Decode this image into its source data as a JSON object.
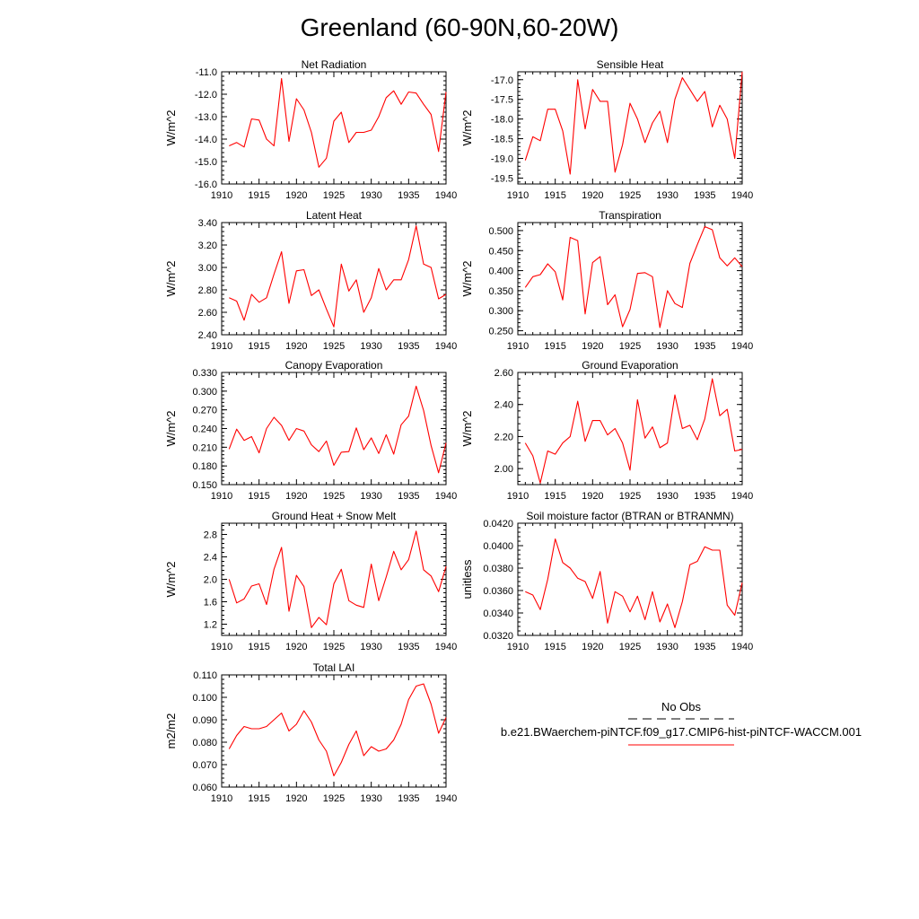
{
  "title": "Greenland (60-90N,60-20W)",
  "legend": {
    "obs_label": "No Obs",
    "model_label": "b.e21.BWaerchem-piNTCF.f09_g17.CMIP6-hist-piNTCF-WACCM.001",
    "model_color": "#ff0000",
    "obs_color": "#000000"
  },
  "chart_data": [
    {
      "type": "line",
      "title": "Net Radiation",
      "ylabel": "W/m^2",
      "xlim": [
        1910,
        1940
      ],
      "ylim": [
        -16.0,
        -11.0
      ],
      "xticks": [
        "1910",
        "1915",
        "1920",
        "1925",
        "1930",
        "1935",
        "1940"
      ],
      "yticks": [
        "-16.0",
        "-15.0",
        "-14.0",
        "-13.0",
        "-12.0",
        "-11.0"
      ],
      "x": [
        1911,
        1912,
        1913,
        1914,
        1915,
        1916,
        1917,
        1918,
        1919,
        1920,
        1921,
        1922,
        1923,
        1924,
        1925,
        1926,
        1927,
        1928,
        1929,
        1930,
        1931,
        1932,
        1933,
        1934,
        1935,
        1936,
        1937,
        1938,
        1939,
        1940
      ],
      "series": [
        {
          "values": [
            -14.3,
            -14.15,
            -14.35,
            -13.1,
            -13.15,
            -14.0,
            -14.3,
            -11.3,
            -14.1,
            -12.2,
            -12.7,
            -13.7,
            -15.25,
            -14.85,
            -13.2,
            -12.8,
            -14.15,
            -13.7,
            -13.7,
            -13.6,
            -13.0,
            -12.15,
            -11.85,
            -12.45,
            -11.9,
            -11.95,
            -12.45,
            -12.9,
            -14.55,
            -11.9
          ]
        }
      ]
    },
    {
      "type": "line",
      "title": "Sensible Heat",
      "ylabel": "W/m^2",
      "xlim": [
        1910,
        1940
      ],
      "ylim": [
        -19.65,
        -16.8
      ],
      "xticks": [
        "1910",
        "1915",
        "1920",
        "1925",
        "1930",
        "1935",
        "1940"
      ],
      "yticks": [
        "-19.5",
        "-19.0",
        "-18.5",
        "-18.0",
        "-17.5",
        "-17.0"
      ],
      "x": [
        1911,
        1912,
        1913,
        1914,
        1915,
        1916,
        1917,
        1918,
        1919,
        1920,
        1921,
        1922,
        1923,
        1924,
        1925,
        1926,
        1927,
        1928,
        1929,
        1930,
        1931,
        1932,
        1933,
        1934,
        1935,
        1936,
        1937,
        1938,
        1939,
        1940
      ],
      "series": [
        {
          "values": [
            -19.05,
            -18.45,
            -18.55,
            -17.75,
            -17.75,
            -18.3,
            -19.4,
            -17.0,
            -18.25,
            -17.25,
            -17.55,
            -17.55,
            -19.35,
            -18.65,
            -17.6,
            -18.0,
            -18.6,
            -18.1,
            -17.8,
            -18.6,
            -17.5,
            -16.95,
            -17.25,
            -17.55,
            -17.3,
            -18.2,
            -17.65,
            -18.0,
            -19.0,
            -16.8
          ]
        }
      ]
    },
    {
      "type": "line",
      "title": "Latent Heat",
      "ylabel": "W/m^2",
      "xlim": [
        1910,
        1940
      ],
      "ylim": [
        2.4,
        3.4
      ],
      "xticks": [
        "1910",
        "1915",
        "1920",
        "1925",
        "1930",
        "1935",
        "1940"
      ],
      "yticks": [
        "2.40",
        "2.60",
        "2.80",
        "3.00",
        "3.20",
        "3.40"
      ],
      "x": [
        1911,
        1912,
        1913,
        1914,
        1915,
        1916,
        1917,
        1918,
        1919,
        1920,
        1921,
        1922,
        1923,
        1924,
        1925,
        1926,
        1927,
        1928,
        1929,
        1930,
        1931,
        1932,
        1933,
        1934,
        1935,
        1936,
        1937,
        1938,
        1939,
        1940
      ],
      "series": [
        {
          "values": [
            2.73,
            2.7,
            2.53,
            2.76,
            2.69,
            2.73,
            2.94,
            3.14,
            2.68,
            2.97,
            2.98,
            2.75,
            2.8,
            2.63,
            2.47,
            3.03,
            2.79,
            2.89,
            2.6,
            2.73,
            2.99,
            2.8,
            2.89,
            2.89,
            3.07,
            3.37,
            3.03,
            3.0,
            2.72,
            2.76
          ]
        }
      ]
    },
    {
      "type": "line",
      "title": "Transpiration",
      "ylabel": "W/m^2",
      "xlim": [
        1910,
        1940
      ],
      "ylim": [
        0.24,
        0.52
      ],
      "xticks": [
        "1910",
        "1915",
        "1920",
        "1925",
        "1930",
        "1935",
        "1940"
      ],
      "yticks": [
        "0.250",
        "0.300",
        "0.350",
        "0.400",
        "0.450",
        "0.500"
      ],
      "x": [
        1911,
        1912,
        1913,
        1914,
        1915,
        1916,
        1917,
        1918,
        1919,
        1920,
        1921,
        1922,
        1923,
        1924,
        1925,
        1926,
        1927,
        1928,
        1929,
        1930,
        1931,
        1932,
        1933,
        1934,
        1935,
        1936,
        1937,
        1938,
        1939,
        1940
      ],
      "series": [
        {
          "values": [
            0.358,
            0.385,
            0.39,
            0.417,
            0.397,
            0.327,
            0.483,
            0.475,
            0.292,
            0.42,
            0.435,
            0.315,
            0.34,
            0.26,
            0.303,
            0.393,
            0.395,
            0.385,
            0.258,
            0.35,
            0.318,
            0.308,
            0.418,
            0.465,
            0.51,
            0.502,
            0.432,
            0.412,
            0.432,
            0.41
          ]
        }
      ]
    },
    {
      "type": "line",
      "title": "Canopy Evaporation",
      "ylabel": "W/m^2",
      "xlim": [
        1910,
        1940
      ],
      "ylim": [
        0.15,
        0.33
      ],
      "xticks": [
        "1910",
        "1915",
        "1920",
        "1925",
        "1930",
        "1935",
        "1940"
      ],
      "yticks": [
        "0.150",
        "0.180",
        "0.210",
        "0.240",
        "0.270",
        "0.300",
        "0.330"
      ],
      "x": [
        1911,
        1912,
        1913,
        1914,
        1915,
        1916,
        1917,
        1918,
        1919,
        1920,
        1921,
        1922,
        1923,
        1924,
        1925,
        1926,
        1927,
        1928,
        1929,
        1930,
        1931,
        1932,
        1933,
        1934,
        1935,
        1936,
        1937,
        1938,
        1939,
        1940
      ],
      "series": [
        {
          "values": [
            0.207,
            0.239,
            0.221,
            0.227,
            0.201,
            0.24,
            0.258,
            0.245,
            0.221,
            0.24,
            0.236,
            0.214,
            0.203,
            0.22,
            0.181,
            0.202,
            0.203,
            0.241,
            0.206,
            0.225,
            0.2,
            0.23,
            0.199,
            0.246,
            0.26,
            0.308,
            0.269,
            0.213,
            0.169,
            0.217
          ]
        }
      ]
    },
    {
      "type": "line",
      "title": "Ground Evaporation",
      "ylabel": "W/m^2",
      "xlim": [
        1910,
        1940
      ],
      "ylim": [
        1.9,
        2.6
      ],
      "xticks": [
        "1910",
        "1915",
        "1920",
        "1925",
        "1930",
        "1935",
        "1940"
      ],
      "yticks": [
        "2.00",
        "2.20",
        "2.40",
        "2.60"
      ],
      "x": [
        1911,
        1912,
        1913,
        1914,
        1915,
        1916,
        1917,
        1918,
        1919,
        1920,
        1921,
        1922,
        1923,
        1924,
        1925,
        1926,
        1927,
        1928,
        1929,
        1930,
        1931,
        1932,
        1933,
        1934,
        1935,
        1936,
        1937,
        1938,
        1939,
        1940
      ],
      "series": [
        {
          "values": [
            2.16,
            2.08,
            1.91,
            2.11,
            2.09,
            2.16,
            2.2,
            2.42,
            2.17,
            2.3,
            2.3,
            2.21,
            2.25,
            2.16,
            1.99,
            2.43,
            2.19,
            2.26,
            2.13,
            2.16,
            2.46,
            2.25,
            2.27,
            2.18,
            2.31,
            2.56,
            2.33,
            2.37,
            2.11,
            2.12
          ]
        }
      ]
    },
    {
      "type": "line",
      "title": "Ground Heat + Snow Melt",
      "ylabel": "W/m^2",
      "xlim": [
        1910,
        1940
      ],
      "ylim": [
        1.0,
        3.0
      ],
      "xticks": [
        "1910",
        "1915",
        "1920",
        "1925",
        "1930",
        "1935",
        "1940"
      ],
      "yticks": [
        "1.2",
        "1.6",
        "2.0",
        "2.4",
        "2.8"
      ],
      "x": [
        1911,
        1912,
        1913,
        1914,
        1915,
        1916,
        1917,
        1918,
        1919,
        1920,
        1921,
        1922,
        1923,
        1924,
        1925,
        1926,
        1927,
        1928,
        1929,
        1930,
        1931,
        1932,
        1933,
        1934,
        1935,
        1936,
        1937,
        1938,
        1939,
        1940
      ],
      "series": [
        {
          "values": [
            2.0,
            1.58,
            1.65,
            1.88,
            1.92,
            1.55,
            2.18,
            2.57,
            1.43,
            2.07,
            1.87,
            1.14,
            1.32,
            1.19,
            1.92,
            2.18,
            1.62,
            1.54,
            1.5,
            2.27,
            1.62,
            2.04,
            2.5,
            2.17,
            2.35,
            2.86,
            2.17,
            2.06,
            1.78,
            2.23
          ]
        }
      ]
    },
    {
      "type": "line",
      "title": "Soil moisture factor (BTRAN or BTRANMN)",
      "ylabel": "unitless",
      "xlim": [
        1910,
        1940
      ],
      "ylim": [
        0.032,
        0.042
      ],
      "xticks": [
        "1910",
        "1915",
        "1920",
        "1925",
        "1930",
        "1935",
        "1940"
      ],
      "yticks": [
        "0.0320",
        "0.0340",
        "0.0360",
        "0.0380",
        "0.0400",
        "0.0420"
      ],
      "x": [
        1911,
        1912,
        1913,
        1914,
        1915,
        1916,
        1917,
        1918,
        1919,
        1920,
        1921,
        1922,
        1923,
        1924,
        1925,
        1926,
        1927,
        1928,
        1929,
        1930,
        1931,
        1932,
        1933,
        1934,
        1935,
        1936,
        1937,
        1938,
        1939,
        1940
      ],
      "series": [
        {
          "values": [
            0.0359,
            0.0356,
            0.0343,
            0.037,
            0.0406,
            0.0385,
            0.038,
            0.0371,
            0.0368,
            0.0353,
            0.0377,
            0.0331,
            0.0359,
            0.0355,
            0.0341,
            0.0355,
            0.0334,
            0.0359,
            0.0332,
            0.0348,
            0.0327,
            0.035,
            0.0383,
            0.0386,
            0.0399,
            0.0396,
            0.0396,
            0.0347,
            0.0338,
            0.0367
          ]
        }
      ]
    },
    {
      "type": "line",
      "title": "Total LAI",
      "ylabel": "m2/m2",
      "xlim": [
        1910,
        1940
      ],
      "ylim": [
        0.06,
        0.11
      ],
      "xticks": [
        "1910",
        "1915",
        "1920",
        "1925",
        "1930",
        "1935",
        "1940"
      ],
      "yticks": [
        "0.060",
        "0.070",
        "0.080",
        "0.090",
        "0.100",
        "0.110"
      ],
      "x": [
        1911,
        1912,
        1913,
        1914,
        1915,
        1916,
        1917,
        1918,
        1919,
        1920,
        1921,
        1922,
        1923,
        1924,
        1925,
        1926,
        1927,
        1928,
        1929,
        1930,
        1931,
        1932,
        1933,
        1934,
        1935,
        1936,
        1937,
        1938,
        1939,
        1940
      ],
      "series": [
        {
          "values": [
            0.077,
            0.083,
            0.087,
            0.086,
            0.086,
            0.087,
            0.09,
            0.093,
            0.085,
            0.088,
            0.094,
            0.089,
            0.081,
            0.076,
            0.065,
            0.071,
            0.079,
            0.085,
            0.074,
            0.078,
            0.076,
            0.077,
            0.081,
            0.088,
            0.099,
            0.105,
            0.106,
            0.097,
            0.084,
            0.091
          ]
        }
      ]
    }
  ]
}
